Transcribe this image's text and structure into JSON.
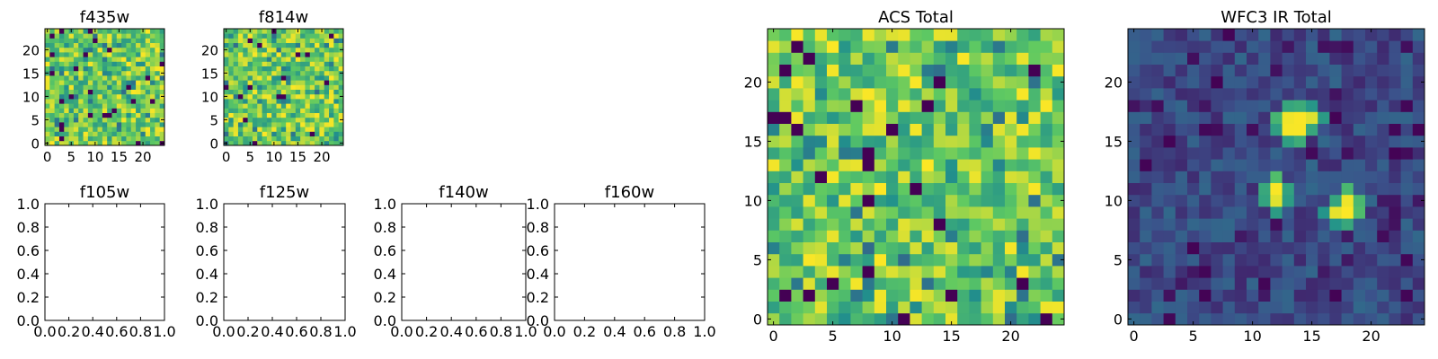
{
  "chart_data": [
    {
      "type": "heatmap",
      "title": "f435w",
      "xlabel": "",
      "ylabel": "",
      "xlim": [
        -0.5,
        24.5
      ],
      "ylim": [
        -0.5,
        24.5
      ],
      "xticks": [
        0,
        5,
        10,
        15,
        20
      ],
      "yticks": [
        0,
        5,
        10,
        15,
        20
      ],
      "grid_size": [
        25,
        25
      ],
      "colormap": "viridis",
      "values_note": "per-pixel noise image, values not labeled"
    },
    {
      "type": "heatmap",
      "title": "f814w",
      "xlabel": "",
      "ylabel": "",
      "xlim": [
        -0.5,
        24.5
      ],
      "ylim": [
        -0.5,
        24.5
      ],
      "xticks": [
        0,
        5,
        10,
        15,
        20
      ],
      "yticks": [
        0,
        5,
        10,
        15,
        20
      ],
      "grid_size": [
        25,
        25
      ],
      "colormap": "viridis"
    },
    {
      "type": "empty",
      "title": "f105w",
      "xlim": [
        0,
        1
      ],
      "ylim": [
        0,
        1
      ],
      "xticks": [
        "0.0",
        "0.2",
        "0.4",
        "0.6",
        "0.8",
        "1.0"
      ],
      "yticks": [
        "0.0",
        "0.2",
        "0.4",
        "0.6",
        "0.8",
        "1.0"
      ]
    },
    {
      "type": "empty",
      "title": "f125w",
      "xlim": [
        0,
        1
      ],
      "ylim": [
        0,
        1
      ],
      "xticks": [
        "0.0",
        "0.2",
        "0.4",
        "0.6",
        "0.8",
        "1.0"
      ],
      "yticks": [
        "0.0",
        "0.2",
        "0.4",
        "0.6",
        "0.8",
        "1.0"
      ]
    },
    {
      "type": "empty",
      "title": "f140w",
      "xlim": [
        0,
        1
      ],
      "ylim": [
        0,
        1
      ],
      "xticks": [
        "0.0",
        "0.2",
        "0.4",
        "0.6",
        "0.8",
        "1.0"
      ],
      "yticks": [
        "0.0",
        "0.2",
        "0.4",
        "0.6",
        "0.8",
        "1.0"
      ]
    },
    {
      "type": "empty",
      "title": "f160w",
      "xlim": [
        0,
        1
      ],
      "ylim": [
        0,
        1
      ],
      "xticks": [
        "0.0",
        "0.2",
        "0.4",
        "0.6",
        "0.8",
        "1.0"
      ],
      "yticks": [
        "0.0",
        "0.2",
        "0.4",
        "0.6",
        "0.8",
        "1.0"
      ]
    },
    {
      "type": "heatmap",
      "title": "ACS Total",
      "xlim": [
        -0.5,
        24.5
      ],
      "ylim": [
        -0.5,
        24.5
      ],
      "xticks": [
        0,
        5,
        10,
        15,
        20
      ],
      "yticks": [
        0,
        5,
        10,
        15,
        20
      ],
      "grid_size": [
        25,
        25
      ],
      "colormap": "viridis"
    },
    {
      "type": "heatmap",
      "title": "WFC3 IR Total",
      "xlim": [
        -0.5,
        24.5
      ],
      "ylim": [
        -0.5,
        24.5
      ],
      "xticks": [
        0,
        5,
        10,
        15,
        20
      ],
      "yticks": [
        0,
        5,
        10,
        15,
        20
      ],
      "grid_size": [
        25,
        25
      ],
      "colormap": "viridis",
      "bright_sources": [
        {
          "x": 13,
          "y": 16
        },
        {
          "x": 14,
          "y": 16
        },
        {
          "x": 14,
          "y": 17
        },
        {
          "x": 15,
          "y": 17
        },
        {
          "x": 13,
          "y": 17
        },
        {
          "x": 12,
          "y": 11
        },
        {
          "x": 12,
          "y": 10
        },
        {
          "x": 17,
          "y": 9
        },
        {
          "x": 18,
          "y": 9
        },
        {
          "x": 18,
          "y": 10
        }
      ]
    }
  ]
}
